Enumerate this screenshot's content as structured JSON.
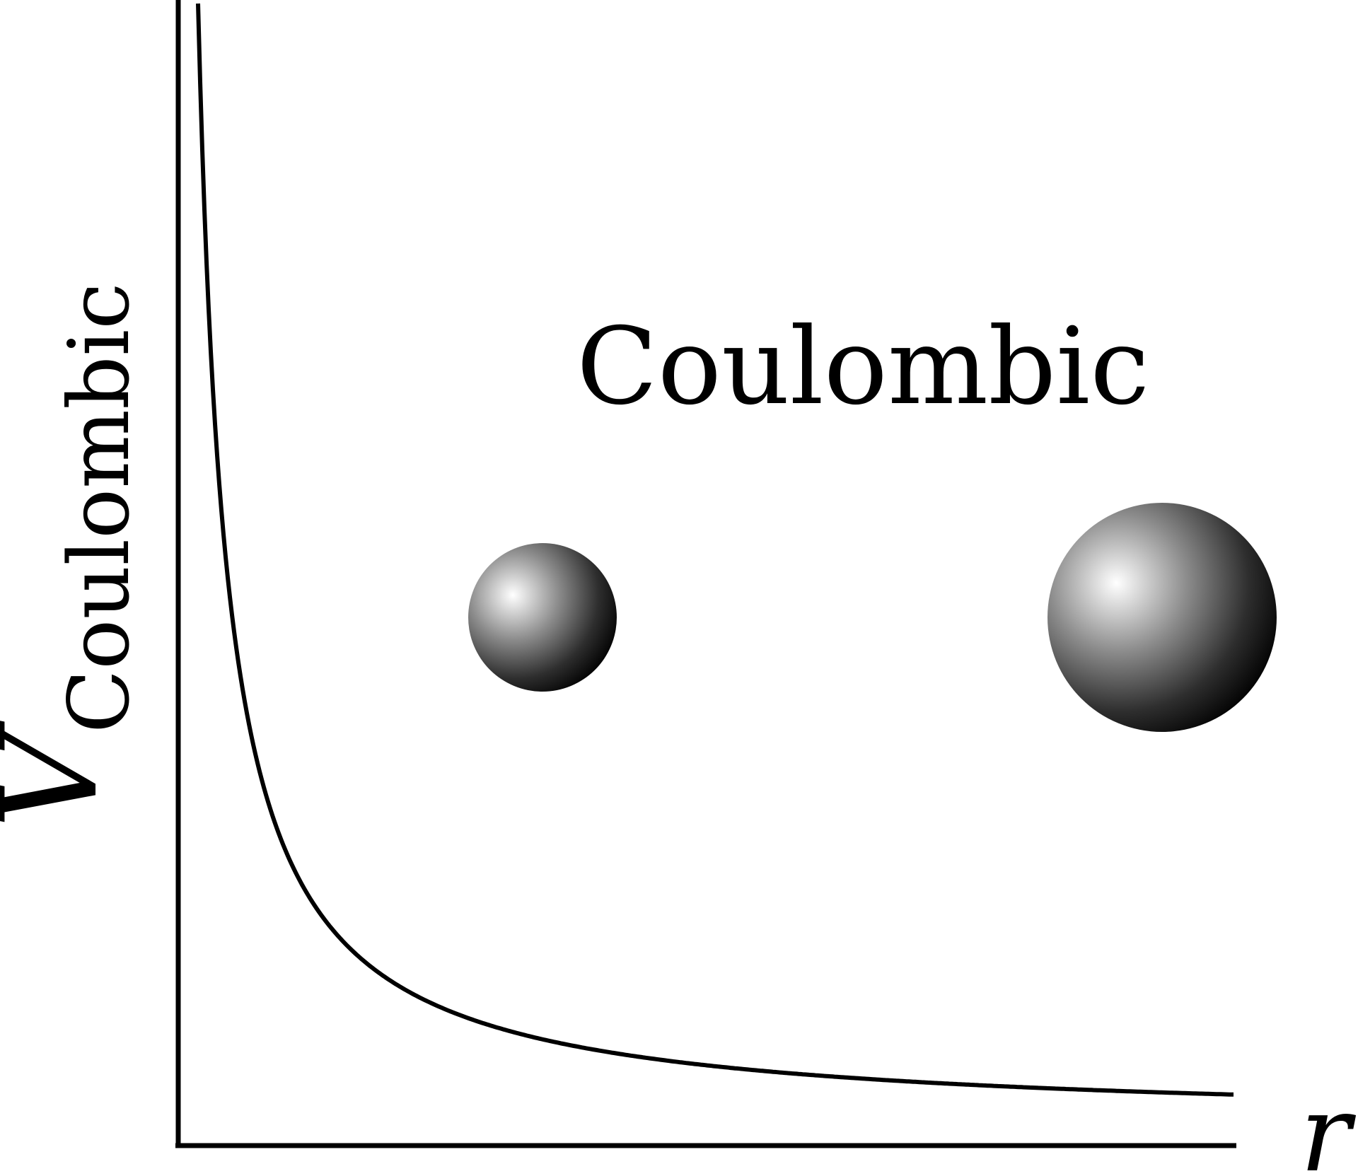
{
  "labels": {
    "y_axis_main": "V",
    "y_axis_subscript": "Coulombic",
    "x_axis": "r",
    "panel_title": "Coulombic"
  },
  "chart_data": {
    "type": "line",
    "title": "Coulombic",
    "xlabel": "r",
    "ylabel": "V_Coulombic",
    "grid": false,
    "curve_shape": "inverse",
    "series": [
      {
        "values_note_only": null
      }
    ]
  },
  "colors": {
    "background": "#ffffff",
    "stroke": "#000000",
    "sphere_light": "#ffffff",
    "sphere_mid": "#8a8a8a",
    "sphere_dark": "#000000"
  },
  "spheres": [
    {
      "name": "small-sphere"
    },
    {
      "name": "large-sphere"
    }
  ]
}
